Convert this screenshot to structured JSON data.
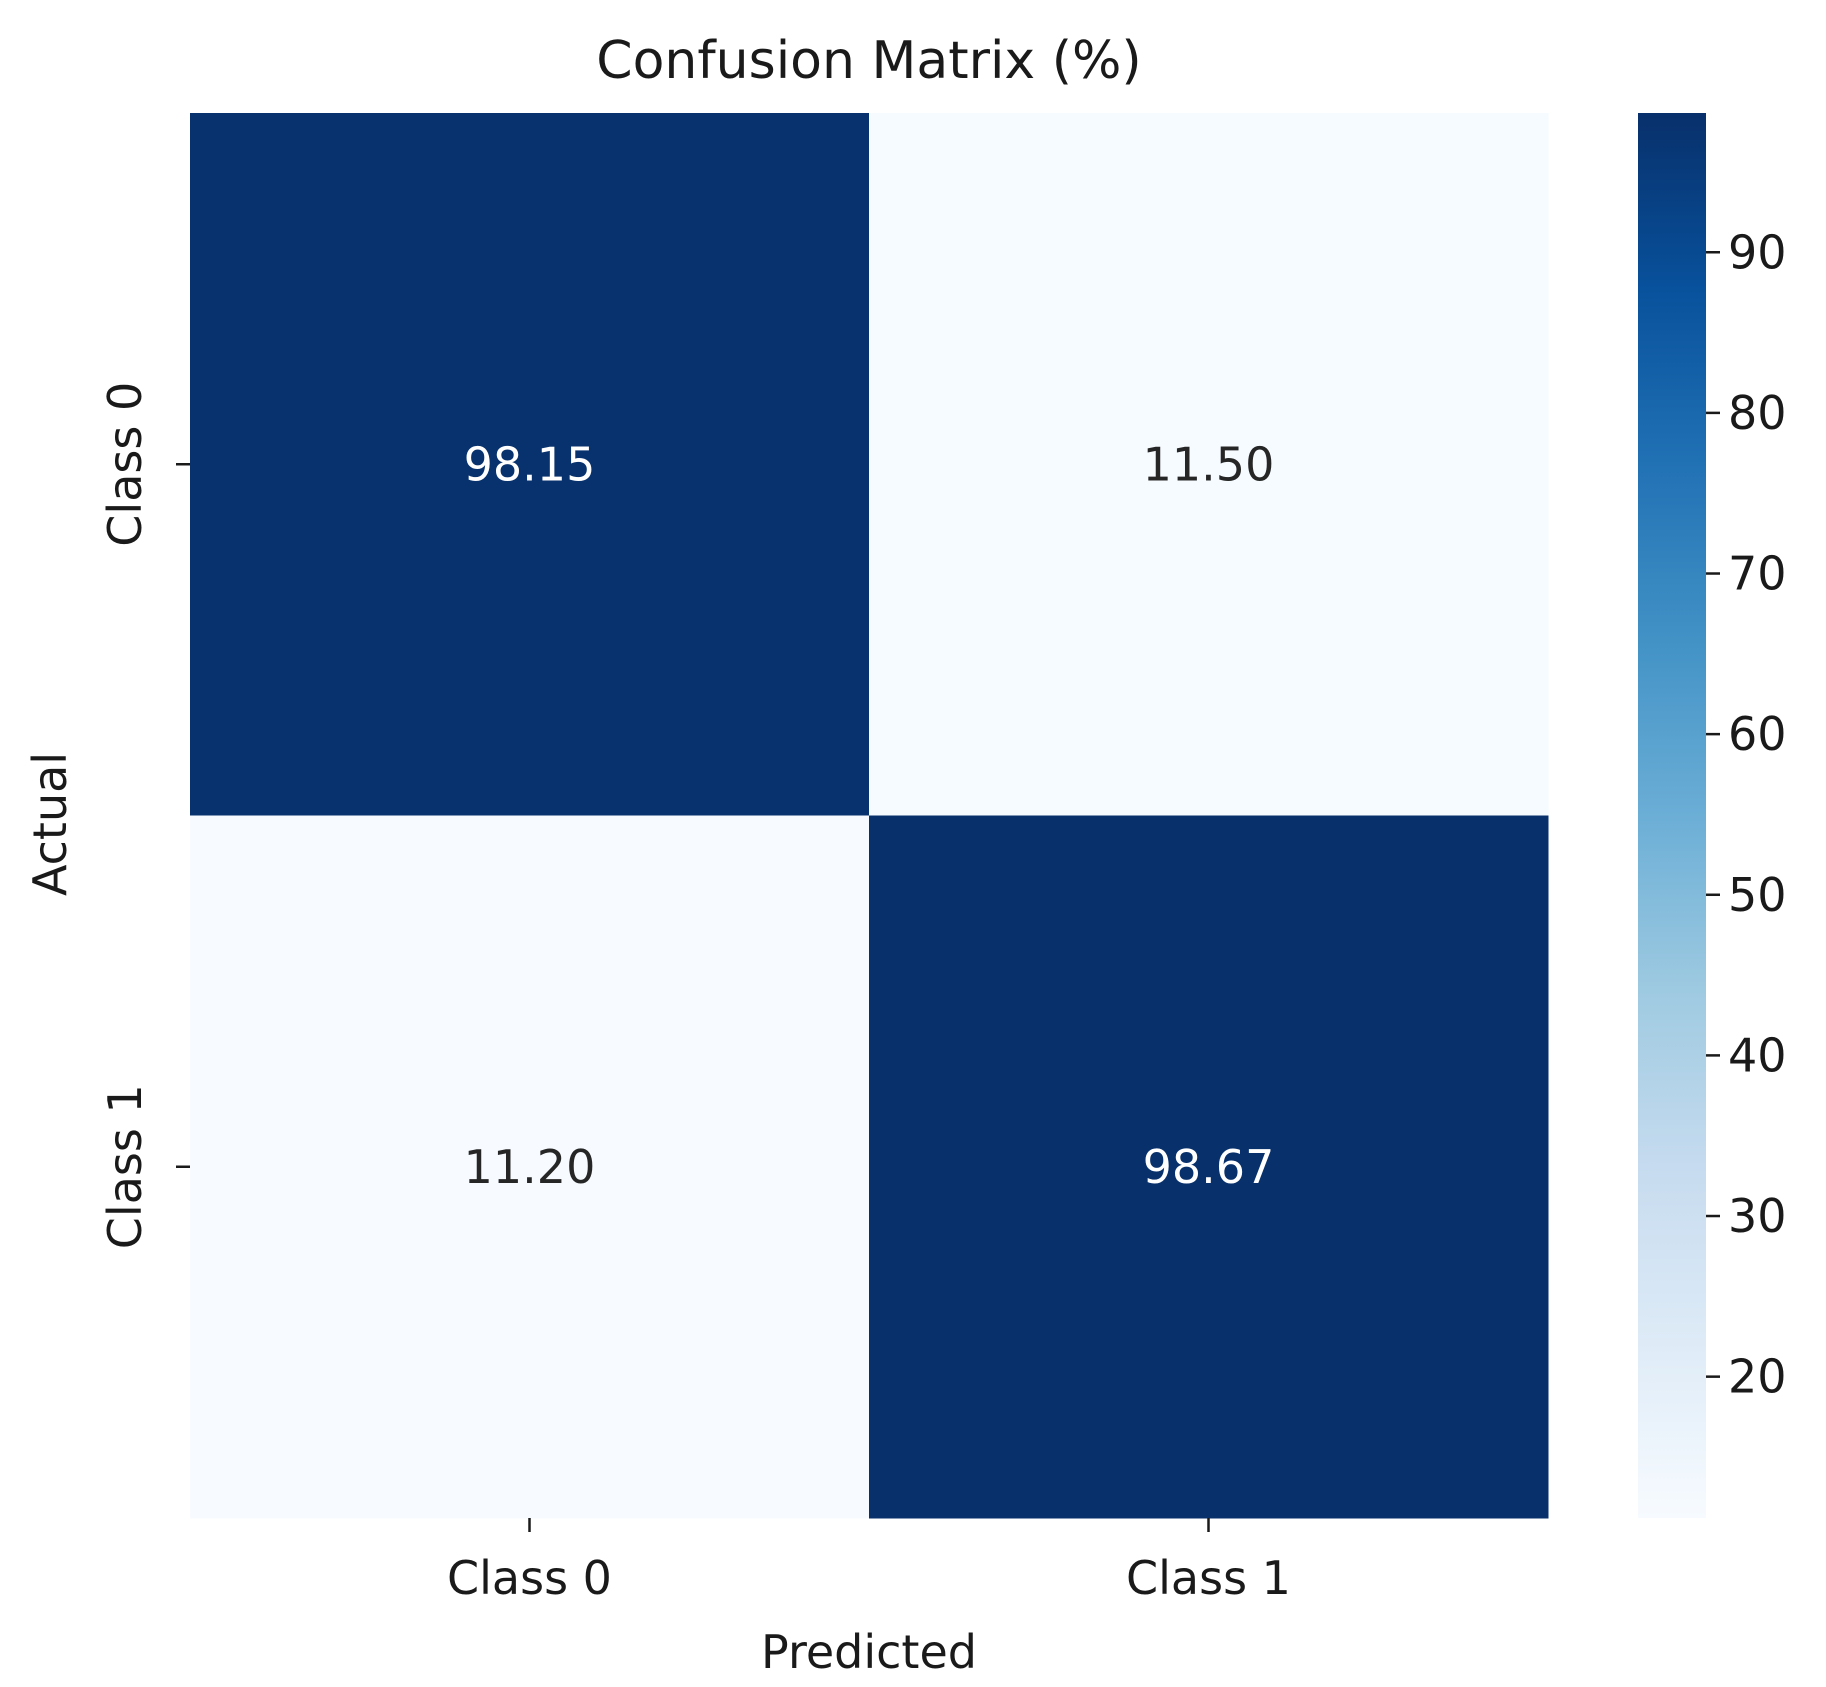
{
  "chart_data": {
    "type": "heatmap",
    "title": "Confusion Matrix (%)",
    "xlabel": "Predicted",
    "ylabel": "Actual",
    "x_categories": [
      "Class 0",
      "Class 1"
    ],
    "y_categories": [
      "Class 0",
      "Class 1"
    ],
    "values": [
      [
        98.15,
        11.5
      ],
      [
        11.2,
        98.67
      ]
    ],
    "value_labels": [
      [
        "98.15",
        "11.50"
      ],
      [
        "11.20",
        "98.67"
      ]
    ],
    "colorscale": "Blues",
    "vmin": 11.2,
    "vmax": 98.67,
    "colorbar_ticks": [
      20,
      30,
      40,
      50,
      60,
      70,
      80,
      90
    ],
    "colorbar_tick_labels": [
      "20",
      "30",
      "40",
      "50",
      "60",
      "70",
      "80",
      "90"
    ],
    "grid": false,
    "colorbar_position": "right"
  }
}
